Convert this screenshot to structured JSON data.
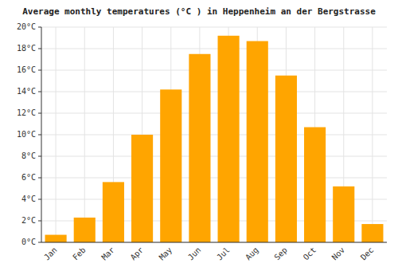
{
  "chart_data": {
    "type": "bar",
    "title": "Average monthly temperatures (°C ) in Heppenheim an der Bergstrasse",
    "categories": [
      "Jan",
      "Feb",
      "Mar",
      "Apr",
      "May",
      "Jun",
      "Jul",
      "Aug",
      "Sep",
      "Oct",
      "Nov",
      "Dec"
    ],
    "values": [
      0.7,
      2.3,
      5.6,
      10.0,
      14.2,
      17.5,
      19.2,
      18.7,
      15.5,
      10.7,
      5.2,
      1.7
    ],
    "color": "#FFA500",
    "ylim": [
      0,
      20
    ],
    "yticks": [
      {
        "value": 0,
        "label": "0°C"
      },
      {
        "value": 2,
        "label": "2°C"
      },
      {
        "value": 4,
        "label": "4°C"
      },
      {
        "value": 6,
        "label": "6°C"
      },
      {
        "value": 8,
        "label": "8°C"
      },
      {
        "value": 10,
        "label": "10°C"
      },
      {
        "value": 12,
        "label": "12°C"
      },
      {
        "value": 14,
        "label": "14°C"
      },
      {
        "value": 16,
        "label": "16°C"
      },
      {
        "value": 18,
        "label": "18°C"
      },
      {
        "value": 20,
        "label": "20°C"
      }
    ],
    "grid": true
  }
}
